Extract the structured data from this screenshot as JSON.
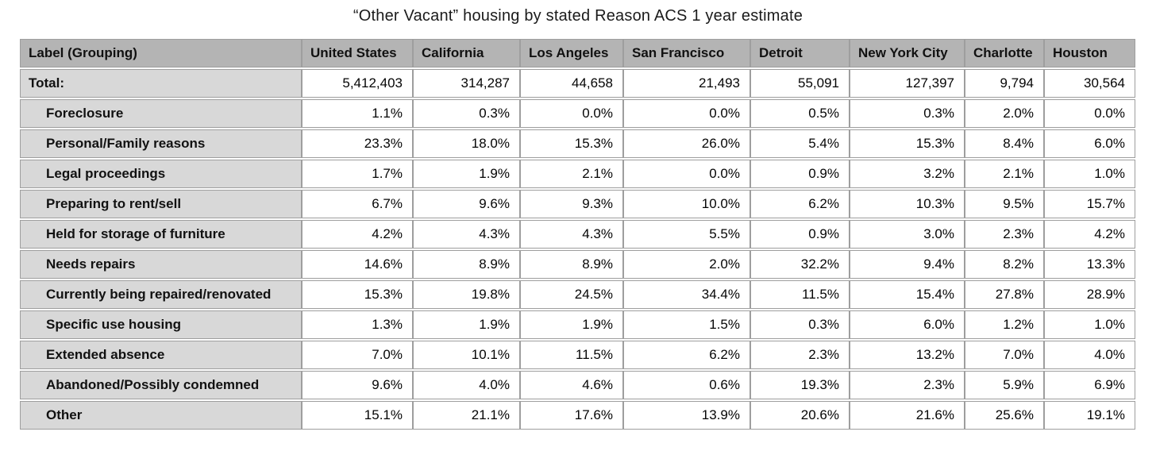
{
  "chart_data": {
    "type": "table",
    "title": "“Other Vacant” housing by stated Reason ACS 1 year estimate",
    "columns": [
      "Label (Grouping)",
      "United States",
      "California",
      "Los Angeles",
      "San Francisco",
      "Detroit",
      "New York City",
      "Charlotte",
      "Houston"
    ],
    "rows": [
      {
        "label": "Total:",
        "indent": false,
        "values": [
          "5,412,403",
          "314,287",
          "44,658",
          "21,493",
          "55,091",
          "127,397",
          "9,794",
          "30,564"
        ]
      },
      {
        "label": "Foreclosure",
        "indent": true,
        "values": [
          "1.1%",
          "0.3%",
          "0.0%",
          "0.0%",
          "0.5%",
          "0.3%",
          "2.0%",
          "0.0%"
        ]
      },
      {
        "label": "Personal/Family reasons",
        "indent": true,
        "values": [
          "23.3%",
          "18.0%",
          "15.3%",
          "26.0%",
          "5.4%",
          "15.3%",
          "8.4%",
          "6.0%"
        ]
      },
      {
        "label": "Legal proceedings",
        "indent": true,
        "values": [
          "1.7%",
          "1.9%",
          "2.1%",
          "0.0%",
          "0.9%",
          "3.2%",
          "2.1%",
          "1.0%"
        ]
      },
      {
        "label": "Preparing to rent/sell",
        "indent": true,
        "values": [
          "6.7%",
          "9.6%",
          "9.3%",
          "10.0%",
          "6.2%",
          "10.3%",
          "9.5%",
          "15.7%"
        ]
      },
      {
        "label": "Held for storage of furniture",
        "indent": true,
        "values": [
          "4.2%",
          "4.3%",
          "4.3%",
          "5.5%",
          "0.9%",
          "3.0%",
          "2.3%",
          "4.2%"
        ]
      },
      {
        "label": "Needs repairs",
        "indent": true,
        "values": [
          "14.6%",
          "8.9%",
          "8.9%",
          "2.0%",
          "32.2%",
          "9.4%",
          "8.2%",
          "13.3%"
        ]
      },
      {
        "label": "Currently being repaired/renovated",
        "indent": true,
        "values": [
          "15.3%",
          "19.8%",
          "24.5%",
          "34.4%",
          "11.5%",
          "15.4%",
          "27.8%",
          "28.9%"
        ]
      },
      {
        "label": "Specific use housing",
        "indent": true,
        "values": [
          "1.3%",
          "1.9%",
          "1.9%",
          "1.5%",
          "0.3%",
          "6.0%",
          "1.2%",
          "1.0%"
        ]
      },
      {
        "label": "Extended absence",
        "indent": true,
        "values": [
          "7.0%",
          "10.1%",
          "11.5%",
          "6.2%",
          "2.3%",
          "13.2%",
          "7.0%",
          "4.0%"
        ]
      },
      {
        "label": "Abandoned/Possibly condemned",
        "indent": true,
        "values": [
          "9.6%",
          "4.0%",
          "4.6%",
          "0.6%",
          "19.3%",
          "2.3%",
          "5.9%",
          "6.9%"
        ]
      },
      {
        "label": "Other",
        "indent": true,
        "values": [
          "15.1%",
          "21.1%",
          "17.6%",
          "13.9%",
          "20.6%",
          "21.6%",
          "25.6%",
          "19.1%"
        ]
      }
    ]
  },
  "colors": {
    "header_bg": "#b4b4b4",
    "label_bg": "#d8d8d8",
    "cell_bg": "#ffffff",
    "border": "#9e9e9e"
  }
}
